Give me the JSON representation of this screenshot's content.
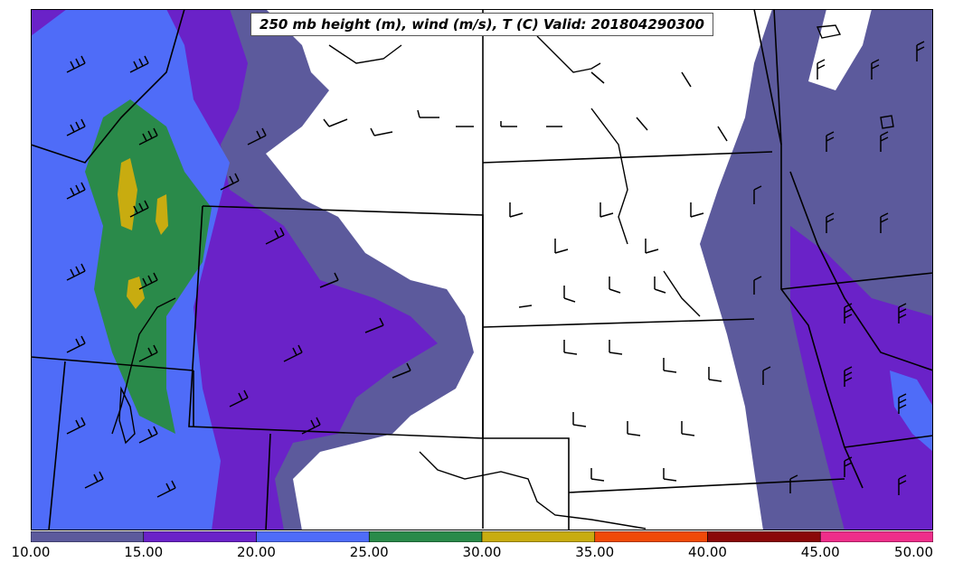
{
  "title": "250 mb height (m), wind (m/s), T (C) Valid: 201804290300",
  "colorbar": {
    "tick_labels": [
      "10.00",
      "15.00",
      "20.00",
      "25.00",
      "30.00",
      "35.00",
      "40.00",
      "45.00",
      "50.00"
    ],
    "colors": [
      "#5c5a9c",
      "#6a22c8",
      "#4f6cf8",
      "#2a8a4a",
      "#c8ac10",
      "#f04a08",
      "#8a0808",
      "#ee2e8a"
    ]
  },
  "map_colors": {
    "background": "#ffffff",
    "band_10_15": "#5c5a9c",
    "band_15_20": "#6a22c8",
    "band_20_25": "#4f6cf8",
    "band_25_30": "#2a8a4a",
    "band_30_35": "#c8ac10",
    "boundary": "#000000"
  }
}
